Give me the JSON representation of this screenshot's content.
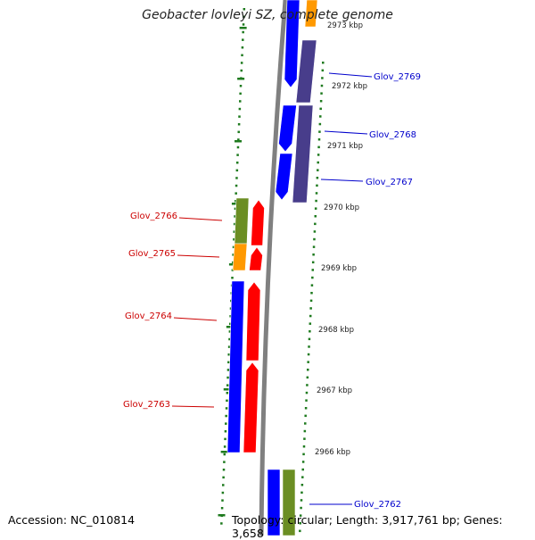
{
  "header": {
    "title": "Geobacter lovleyi SZ, complete genome"
  },
  "footer": {
    "accession": "Accession: NC_010814",
    "topology": "Topology: circular; Length: 3,917,761 bp; Genes: 3,658"
  },
  "colors": {
    "forward_label": "#0000cc",
    "reverse_label": "#cc0000",
    "cds_blue": "#0000ff",
    "cds_red": "#ff0000",
    "cds_green": "#6b8e23",
    "cds_orange": "#ff9900",
    "cds_slate": "#483d8b",
    "backbone": "#808080",
    "tick": "#1e7a1e"
  },
  "ticks": [
    "2973 kbp",
    "2972 kbp",
    "2971 kbp",
    "2970 kbp",
    "2969 kbp",
    "2968 kbp",
    "2967 kbp",
    "2966 kbp"
  ],
  "forward_genes": [
    "Glov_2769",
    "Glov_2768",
    "Glov_2767",
    "Glov_2762"
  ],
  "reverse_genes": [
    "Glov_2766",
    "Glov_2765",
    "Glov_2764",
    "Glov_2763"
  ]
}
